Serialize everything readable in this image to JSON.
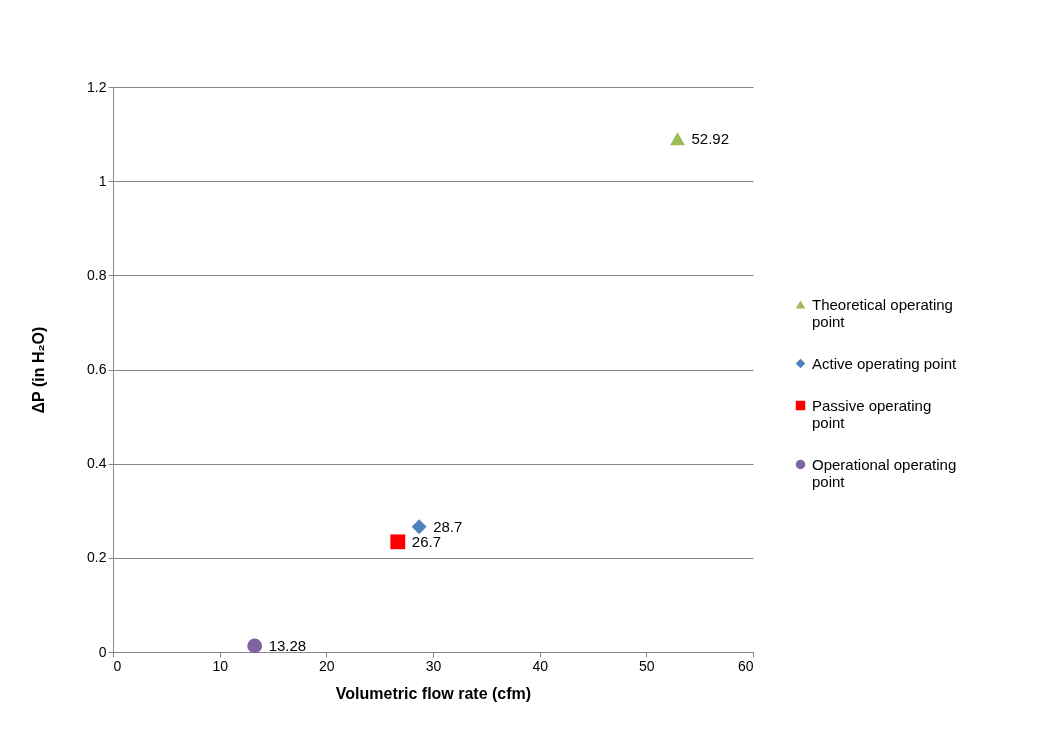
{
  "chart_data": {
    "type": "scatter",
    "xlabel": "Volumetric  flow rate (cfm)",
    "ylabel": "ΔP (in H₂O)",
    "xlim": [
      0,
      60
    ],
    "xticks": [
      0,
      10,
      20,
      30,
      40,
      50,
      60
    ],
    "ylim": [
      0,
      1.2
    ],
    "yticks": [
      0,
      0.2,
      0.4,
      0.6,
      0.8,
      1,
      1.2
    ],
    "grid": "y",
    "legend": "right",
    "series": [
      {
        "name": "Theoretical operating point",
        "color": "#9bbb59",
        "marker": "triangle",
        "x": [
          52.92
        ],
        "values": [
          1.09
        ]
      },
      {
        "name": "Active operating point",
        "color": "#4f81bd",
        "marker": "diamond",
        "x": [
          28.7
        ],
        "values": [
          0.266
        ]
      },
      {
        "name": "Passive operating point",
        "color": "#ff0000",
        "marker": "square",
        "x": [
          26.7
        ],
        "values": [
          0.234
        ]
      },
      {
        "name": "Operational operating point",
        "color": "#8064a2",
        "marker": "circle",
        "x": [
          13.28
        ],
        "values": [
          0.013
        ]
      }
    ],
    "annotations": [
      {
        "text": "52.92",
        "x": 52.92,
        "y": 1.09
      },
      {
        "text": "28.7",
        "x": 28.7,
        "y": 0.266
      },
      {
        "text": "26.7",
        "x": 26.7,
        "y": 0.234
      },
      {
        "text": "13.28",
        "x": 13.28,
        "y": 0.013
      }
    ]
  }
}
